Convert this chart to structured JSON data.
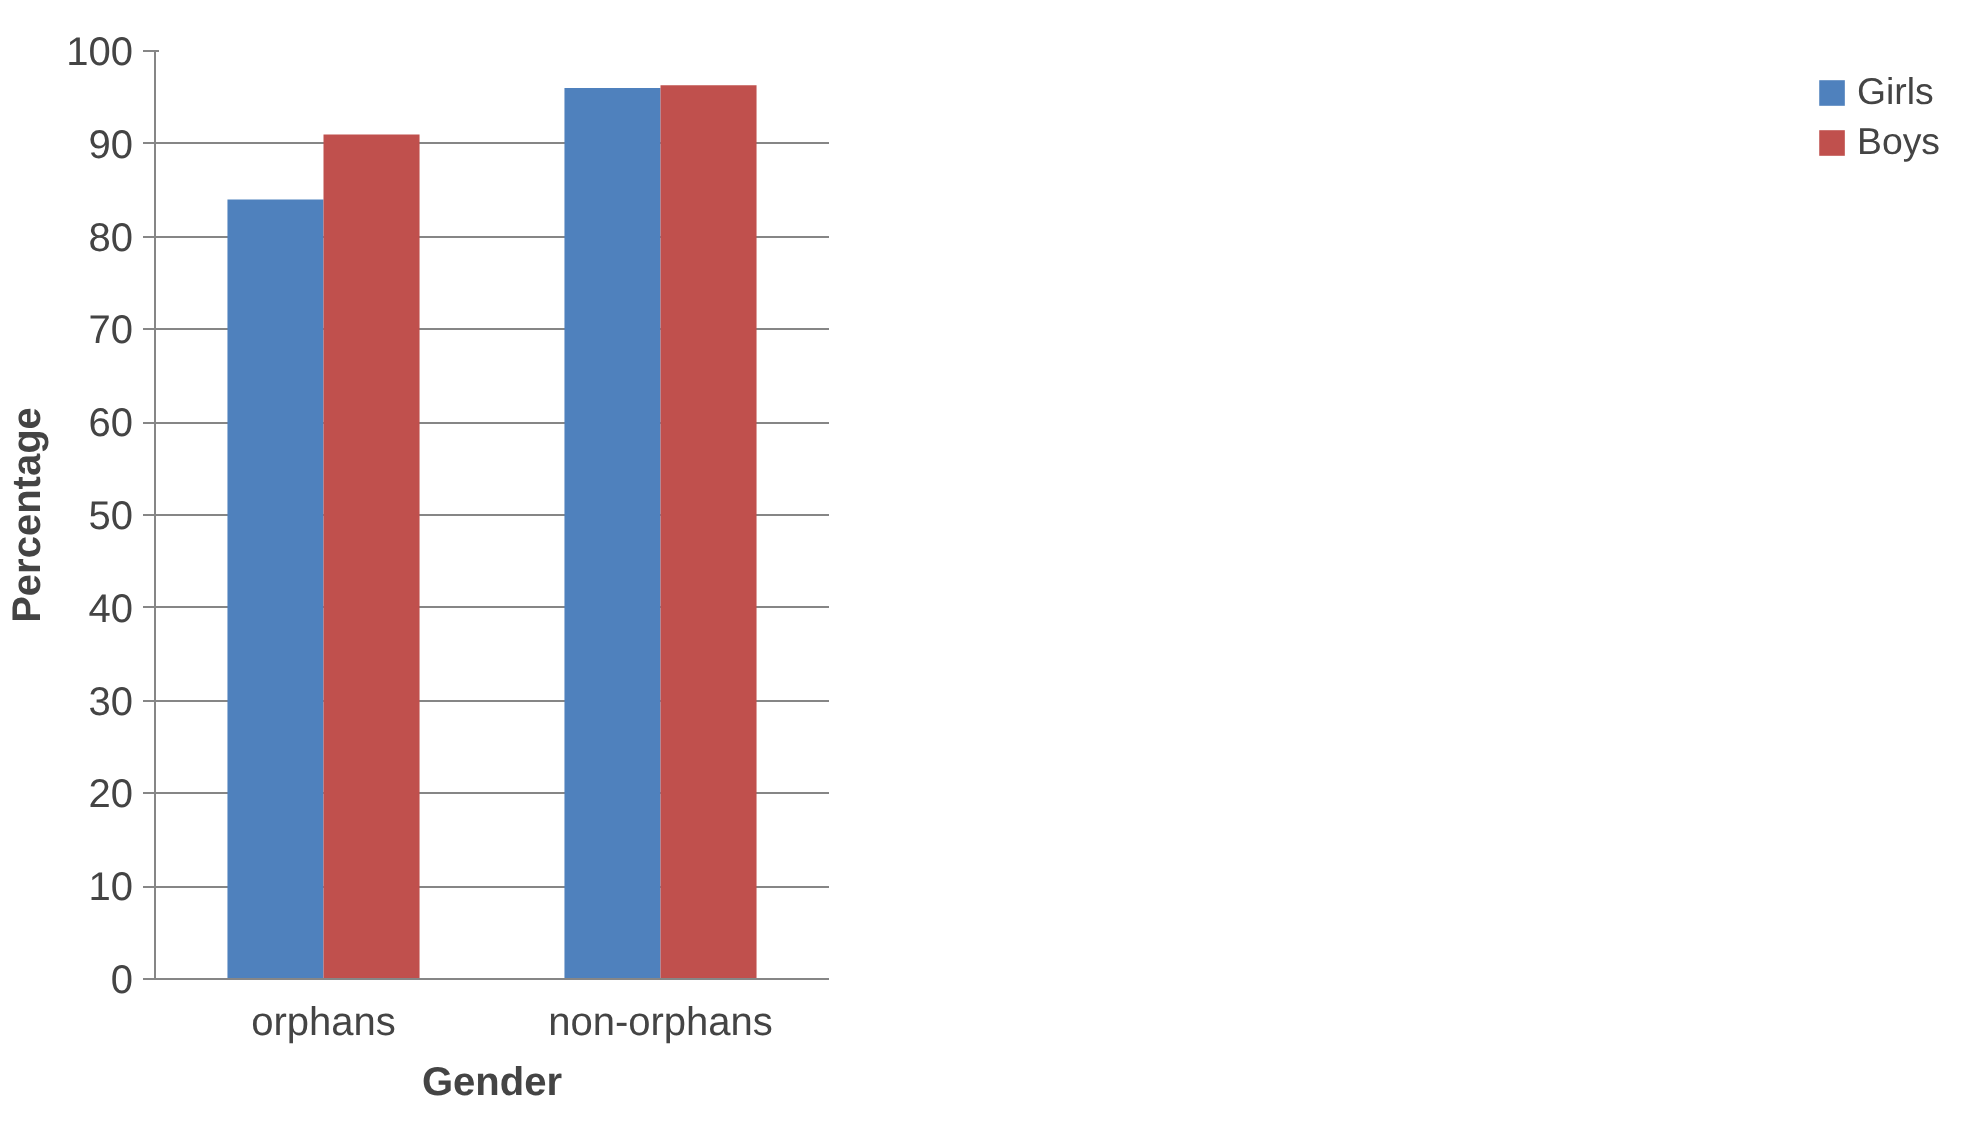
{
  "chart_data": {
    "type": "bar",
    "categories": [
      "orphans",
      "non-orphans"
    ],
    "series": [
      {
        "name": "Girls",
        "color": "#4f81bd",
        "values": [
          84,
          96
        ]
      },
      {
        "name": "Boys",
        "color": "#c0504d",
        "values": [
          91,
          96.3
        ]
      }
    ],
    "xlabel": "Gender",
    "ylabel": "Percentage",
    "ylim": [
      0,
      100
    ],
    "yticks": [
      0,
      10,
      20,
      30,
      40,
      50,
      60,
      70,
      80,
      90,
      100
    ],
    "grid": "y",
    "legend": "right"
  }
}
